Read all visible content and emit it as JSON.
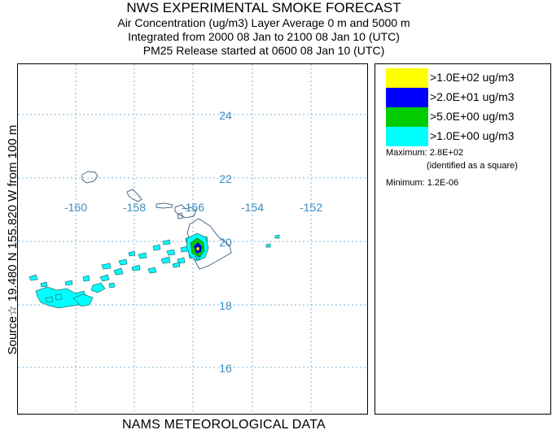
{
  "header": {
    "title": "NWS EXPERIMENTAL SMOKE FORECAST",
    "line2": "Air Concentration (ug/m3) Layer Average    0 m and  5000 m",
    "line3": "Integrated from 2000 08 Jan to 2100 08 Jan 10 (UTC)",
    "line4": "PM25 Release started at 0600 08 Jan 10 (UTC)"
  },
  "side_label": "Source☆ 19.480 N 155.820  W     from  100 m",
  "footer": "NAMS METEOROLOGICAL DATA",
  "map": {
    "lat_labels": [
      "24",
      "22",
      "20",
      "18",
      "16"
    ],
    "lon_labels": [
      "-160",
      "-158",
      "-156",
      "-154",
      "-152"
    ],
    "gridline_color": "#7fb7d9",
    "label_color": "#3d8fc0",
    "coast_color": "#4a6a8a",
    "plume_color": "#00ffff",
    "source_marker": "☆"
  },
  "legend": {
    "items": [
      {
        "label": ">1.0E+02 ug/m3",
        "color": "#ffff00"
      },
      {
        "label": ">2.0E+01 ug/m3",
        "color": "#0000ff"
      },
      {
        "label": ">5.0E+00 ug/m3",
        "color": "#00cc00"
      },
      {
        "label": ">1.0E+00 ug/m3",
        "color": "#00ffff"
      }
    ],
    "maximum": "Maximum: 2.8E+02",
    "maximum_note": "(identified as a square)",
    "minimum": "Minimum: 1.2E-06"
  }
}
